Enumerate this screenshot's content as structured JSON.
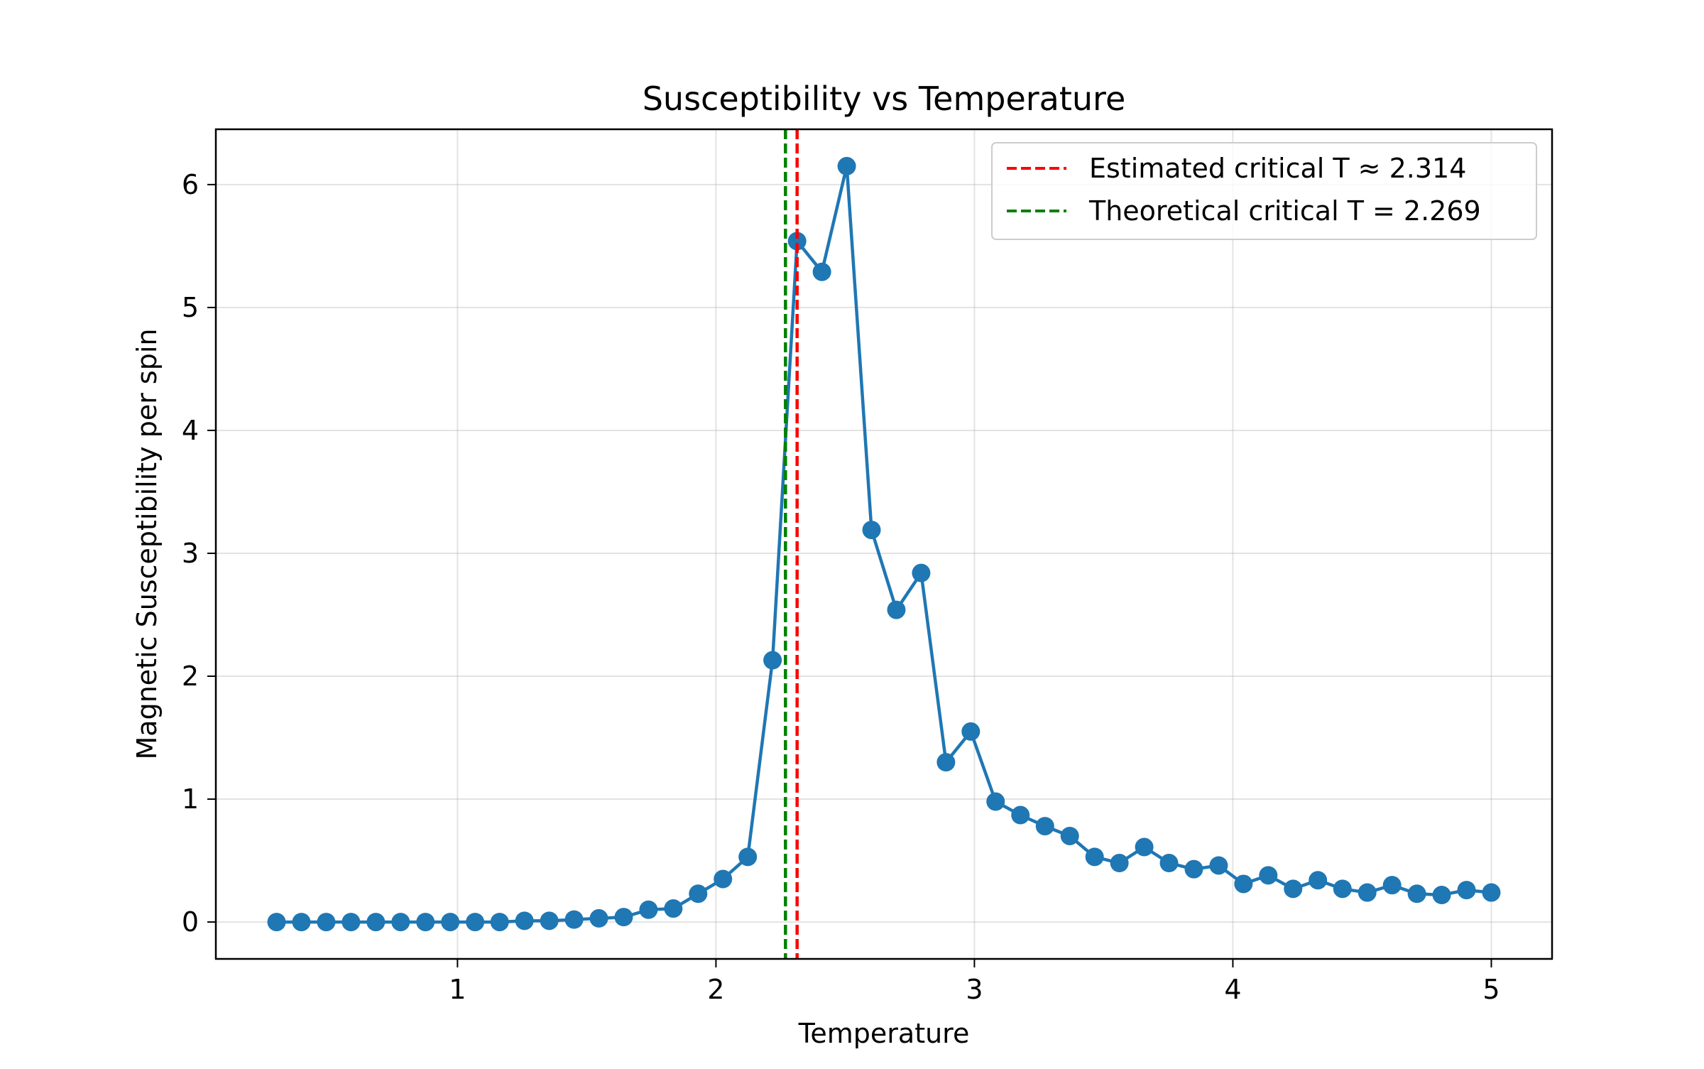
{
  "chart_data": {
    "type": "line",
    "title": "Susceptibility vs Temperature",
    "xlabel": "Temperature",
    "ylabel": "Magnetic Susceptibility per spin",
    "xlim": [
      0.065,
      5.235
    ],
    "ylim": [
      -0.3,
      6.45
    ],
    "xticks": [
      1,
      2,
      3,
      4,
      5
    ],
    "yticks": [
      0,
      1,
      2,
      3,
      4,
      5,
      6
    ],
    "grid": true,
    "legend_position": "top-right",
    "series": [
      {
        "name": "",
        "color": "#1f77b4",
        "marker": "circle",
        "x": [
          0.3,
          0.396,
          0.492,
          0.588,
          0.684,
          0.78,
          0.876,
          0.972,
          1.068,
          1.163,
          1.259,
          1.355,
          1.451,
          1.547,
          1.643,
          1.739,
          1.835,
          1.931,
          2.027,
          2.123,
          2.219,
          2.314,
          2.41,
          2.506,
          2.602,
          2.698,
          2.794,
          2.89,
          2.986,
          3.082,
          3.178,
          3.273,
          3.369,
          3.465,
          3.561,
          3.657,
          3.753,
          3.849,
          3.945,
          4.041,
          4.137,
          4.233,
          4.329,
          4.424,
          4.52,
          4.616,
          4.712,
          4.808,
          4.904,
          5.0
        ],
        "y": [
          0.0,
          0.0,
          0.0,
          0.0,
          0.0,
          0.0,
          0.0,
          0.0,
          0.0,
          0.0,
          0.01,
          0.01,
          0.02,
          0.03,
          0.04,
          0.1,
          0.11,
          0.23,
          0.35,
          0.53,
          2.13,
          5.54,
          5.29,
          6.15,
          3.19,
          2.54,
          2.84,
          1.3,
          1.55,
          0.98,
          0.87,
          0.78,
          0.7,
          0.53,
          0.48,
          0.61,
          0.48,
          0.43,
          0.46,
          0.31,
          0.38,
          0.27,
          0.34,
          0.27,
          0.24,
          0.3,
          0.23,
          0.22,
          0.26,
          0.24
        ]
      }
    ],
    "vlines": [
      {
        "name": "Estimated critical T ≈ 2.314",
        "x": 2.314,
        "color": "#ff0000",
        "style": "dashed"
      },
      {
        "name": "Theoretical critical T = 2.269",
        "x": 2.269,
        "color": "#008000",
        "style": "dashed"
      }
    ]
  }
}
